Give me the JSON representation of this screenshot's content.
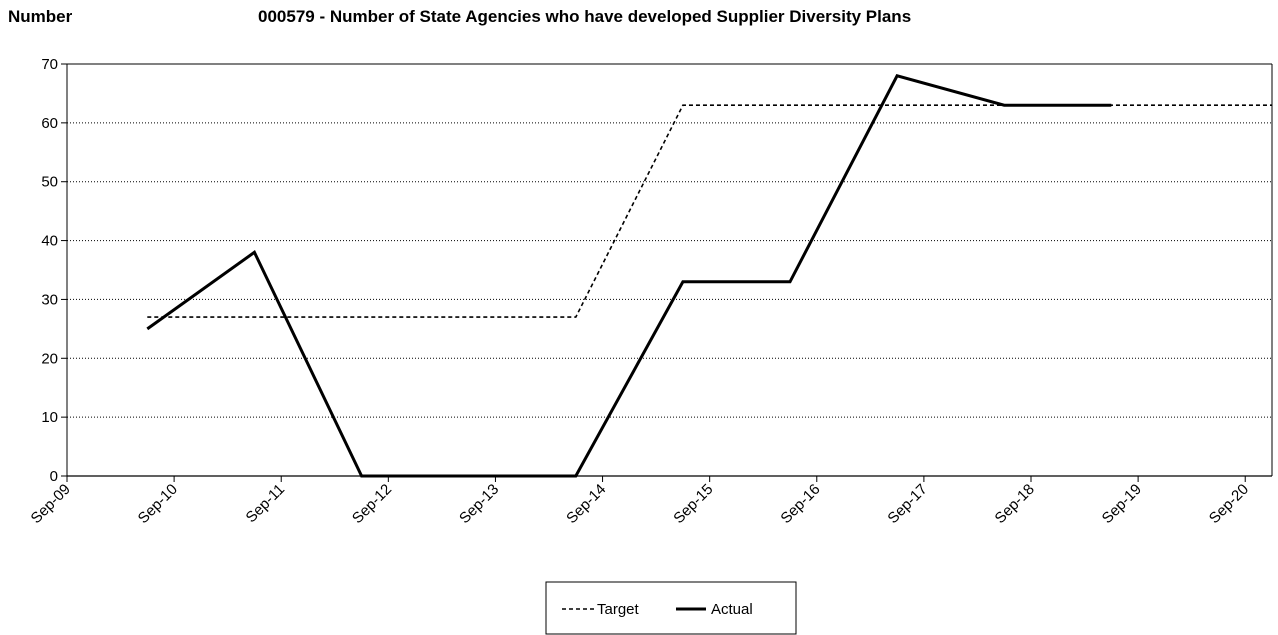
{
  "chart_data": {
    "type": "line",
    "title": "000579 - Number of State Agencies who have developed Supplier Diversity Plans",
    "ylabel": "Number",
    "xlabel": "",
    "ylim": [
      0,
      70
    ],
    "yticks": [
      0,
      10,
      20,
      30,
      40,
      50,
      60,
      70
    ],
    "xlim": [
      "2009-09",
      "2020-12"
    ],
    "xticks": [
      "Sep-09",
      "Sep-10",
      "Sep-11",
      "Sep-12",
      "Sep-13",
      "Sep-14",
      "Sep-15",
      "Sep-16",
      "Sep-17",
      "Sep-18",
      "Sep-19",
      "Sep-20"
    ],
    "grid": "horizontal dotted",
    "legend_position": "bottom-center",
    "series": [
      {
        "name": "Target",
        "style": "dashed",
        "color": "#000000",
        "points": [
          {
            "x": "2010-06",
            "y": 27
          },
          {
            "x": "2014-06",
            "y": 27
          },
          {
            "x": "2015-06",
            "y": 63
          },
          {
            "x": "2020-12",
            "y": 63
          }
        ]
      },
      {
        "name": "Actual",
        "style": "solid",
        "color": "#000000",
        "points": [
          {
            "x": "2010-06",
            "y": 25
          },
          {
            "x": "2011-06",
            "y": 38
          },
          {
            "x": "2012-06",
            "y": 0
          },
          {
            "x": "2014-06",
            "y": 0
          },
          {
            "x": "2015-06",
            "y": 33
          },
          {
            "x": "2016-06",
            "y": 33
          },
          {
            "x": "2017-06",
            "y": 68
          },
          {
            "x": "2018-06",
            "y": 63
          },
          {
            "x": "2019-06",
            "y": 63
          }
        ]
      }
    ]
  }
}
